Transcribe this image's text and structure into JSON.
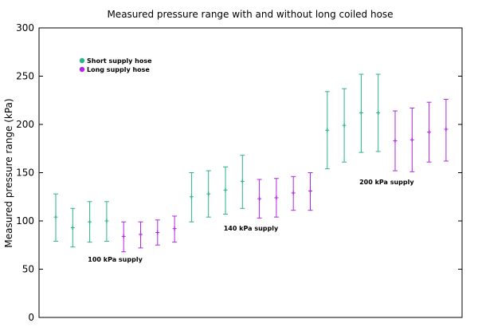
{
  "chart_data": {
    "type": "errorbar",
    "title": "Measured pressure range with and without long coiled hose",
    "ylabel": "Measured pressure range (kPa)",
    "xlabel": "",
    "ylim": [
      0,
      300
    ],
    "yticks": [
      0,
      50,
      100,
      150,
      200,
      250,
      300
    ],
    "grid": false,
    "legend_placement": "top-left",
    "series": [
      {
        "name": "Short supply hose",
        "color": "#2bb38a",
        "points": [
          {
            "x": 1,
            "y": 104,
            "low": 79,
            "high": 128
          },
          {
            "x": 2,
            "y": 93,
            "low": 73,
            "high": 113
          },
          {
            "x": 3,
            "y": 99,
            "low": 78,
            "high": 120
          },
          {
            "x": 4,
            "y": 100,
            "low": 79,
            "high": 120
          },
          {
            "x": 9,
            "y": 125,
            "low": 99,
            "high": 150
          },
          {
            "x": 10,
            "y": 128,
            "low": 104,
            "high": 152
          },
          {
            "x": 11,
            "y": 132,
            "low": 107,
            "high": 156
          },
          {
            "x": 12,
            "y": 141,
            "low": 113,
            "high": 168
          },
          {
            "x": 17,
            "y": 194,
            "low": 154,
            "high": 234
          },
          {
            "x": 18,
            "y": 199,
            "low": 161,
            "high": 237
          },
          {
            "x": 19,
            "y": 212,
            "low": 171,
            "high": 252
          },
          {
            "x": 20,
            "y": 212,
            "low": 172,
            "high": 252
          }
        ]
      },
      {
        "name": "Long supply hose",
        "color": "#b026e6",
        "points": [
          {
            "x": 5,
            "y": 84,
            "low": 68,
            "high": 99
          },
          {
            "x": 6,
            "y": 86,
            "low": 72,
            "high": 99
          },
          {
            "x": 7,
            "y": 88,
            "low": 75,
            "high": 101
          },
          {
            "x": 8,
            "y": 92,
            "low": 78,
            "high": 105
          },
          {
            "x": 13,
            "y": 123,
            "low": 103,
            "high": 143
          },
          {
            "x": 14,
            "y": 124,
            "low": 104,
            "high": 144
          },
          {
            "x": 15,
            "y": 129,
            "low": 111,
            "high": 146
          },
          {
            "x": 16,
            "y": 131,
            "low": 111,
            "high": 150
          },
          {
            "x": 21,
            "y": 183,
            "low": 152,
            "high": 214
          },
          {
            "x": 22,
            "y": 184,
            "low": 151,
            "high": 217
          },
          {
            "x": 23,
            "y": 192,
            "low": 161,
            "high": 223
          },
          {
            "x": 24,
            "y": 195,
            "low": 162,
            "high": 226
          }
        ]
      }
    ],
    "annotations": [
      {
        "text": "100 kPa supply",
        "x": 4.5,
        "y": 58
      },
      {
        "text": "140 kPa supply",
        "x": 12.5,
        "y": 90
      },
      {
        "text": "200 kPa supply",
        "x": 20.5,
        "y": 138
      }
    ]
  }
}
